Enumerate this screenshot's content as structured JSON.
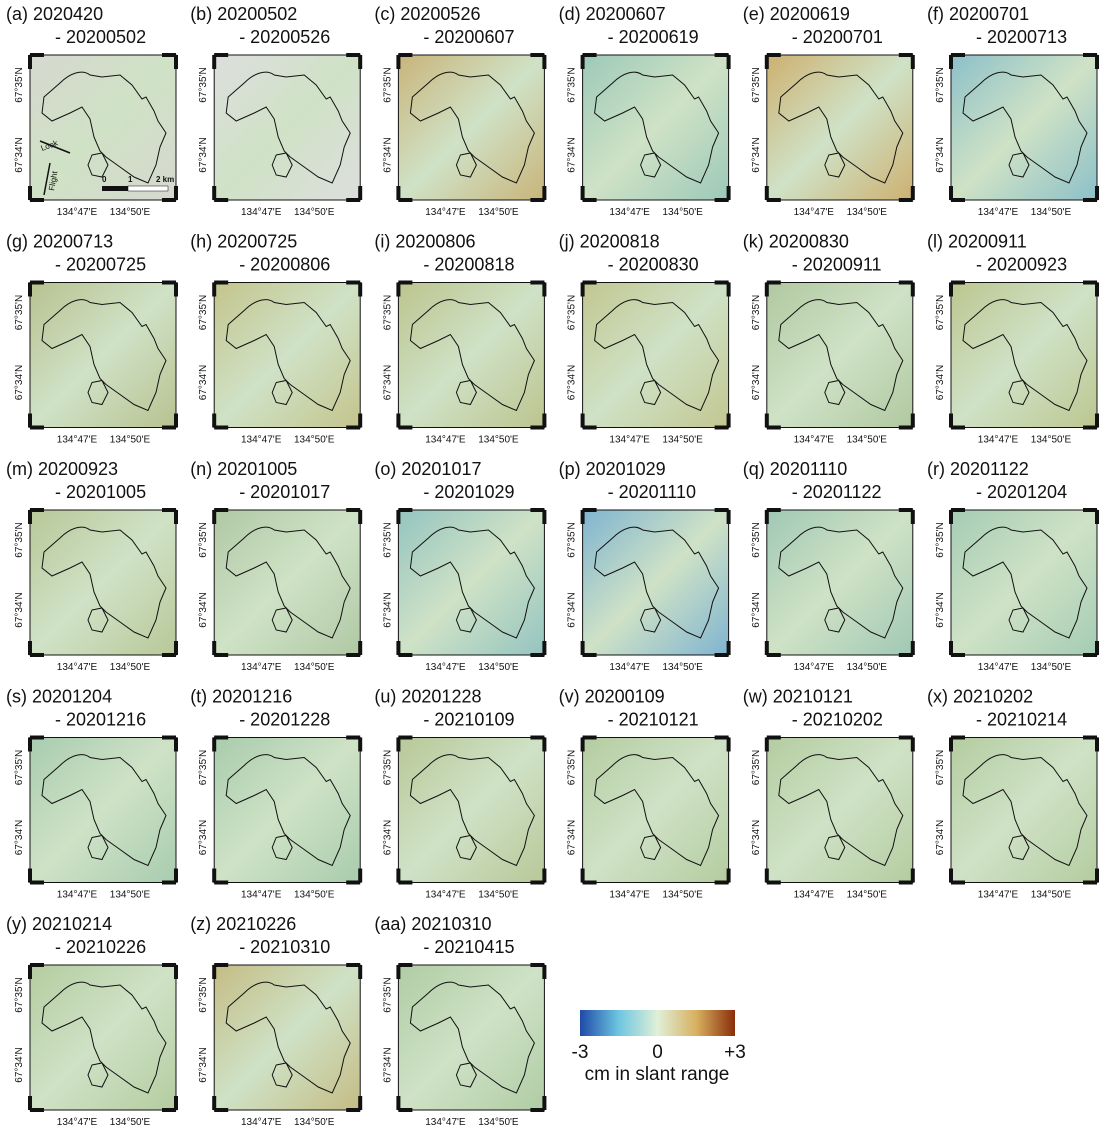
{
  "panels": [
    {
      "title": "(a) 2020420",
      "subtitle": "- 20200502",
      "color": "#d6d8cf"
    },
    {
      "title": "(b) 20200502",
      "subtitle": "- 20200526",
      "color": "#dedede"
    },
    {
      "title": "(c) 20200526",
      "subtitle": "- 20200607",
      "color": "#c9b47a"
    },
    {
      "title": "(d) 20200607",
      "subtitle": "- 20200619",
      "color": "#9cc9b8"
    },
    {
      "title": "(e) 20200619",
      "subtitle": "- 20200701",
      "color": "#cdb070"
    },
    {
      "title": "(f) 20200701",
      "subtitle": "- 20200713",
      "color": "#8cc0c8"
    },
    {
      "title": "(g) 20200713",
      "subtitle": "- 20200725",
      "color": "#b8c290"
    },
    {
      "title": "(h) 20200725",
      "subtitle": "- 20200806",
      "color": "#c4c48c"
    },
    {
      "title": "(i) 20200806",
      "subtitle": "- 20200818",
      "color": "#bcc48e"
    },
    {
      "title": "(j) 20200818",
      "subtitle": "- 20200830",
      "color": "#c2c690"
    },
    {
      "title": "(k) 20200830",
      "subtitle": "- 20200911",
      "color": "#b0c8a0"
    },
    {
      "title": "(l) 20200911",
      "subtitle": "- 20200923",
      "color": "#bcc690"
    },
    {
      "title": "(m) 20200923",
      "subtitle": "- 20201005",
      "color": "#b8c898"
    },
    {
      "title": "(n) 20201005",
      "subtitle": "- 20201017",
      "color": "#b0c8a4"
    },
    {
      "title": "(o) 20201017",
      "subtitle": "- 20201029",
      "color": "#94c4c0"
    },
    {
      "title": "(p) 20201029",
      "subtitle": "- 20201110",
      "color": "#7fb4d0"
    },
    {
      "title": "(q) 20201110",
      "subtitle": "- 20201122",
      "color": "#a0c8b4"
    },
    {
      "title": "(r) 20201122",
      "subtitle": "- 20201204",
      "color": "#a4ccb4"
    },
    {
      "title": "(s) 20201204",
      "subtitle": "- 20201216",
      "color": "#a8ccb0"
    },
    {
      "title": "(t) 20201216",
      "subtitle": "- 20201228",
      "color": "#a8ccac"
    },
    {
      "title": "(u) 20201228",
      "subtitle": "- 20210109",
      "color": "#b8c898"
    },
    {
      "title": "(v) 20200109",
      "subtitle": "- 20210121",
      "color": "#b4cca0"
    },
    {
      "title": "(w) 20210121",
      "subtitle": "- 20210202",
      "color": "#b4cca0"
    },
    {
      "title": "(x) 20210202",
      "subtitle": "- 20210214",
      "color": "#b4cca0"
    },
    {
      "title": "(y) 20210214",
      "subtitle": "- 20210226",
      "color": "#b4cca0"
    },
    {
      "title": "(z) 20210226",
      "subtitle": "- 20210310",
      "color": "#c4bc84"
    },
    {
      "title": "(aa) 20210310",
      "subtitle": "- 20210415",
      "color": "#b0cca4"
    }
  ],
  "axes": {
    "lat_ticks": [
      "67°35'N",
      "67°34'N"
    ],
    "lon_ticks": [
      "134°47'E",
      "134°50'E"
    ]
  },
  "annotations": {
    "look": "Look",
    "flight": "Flight",
    "scale": [
      "0",
      "1",
      "2 km"
    ]
  },
  "colorbar": {
    "ticks": [
      -3,
      0,
      {
        "value": 3,
        "label": "+3"
      }
    ],
    "label": "cm in slant range",
    "colors": [
      "#1f4aa8",
      "#6ec6e0",
      "#dff0d8",
      "#d8b060",
      "#8a2e0a"
    ]
  }
}
